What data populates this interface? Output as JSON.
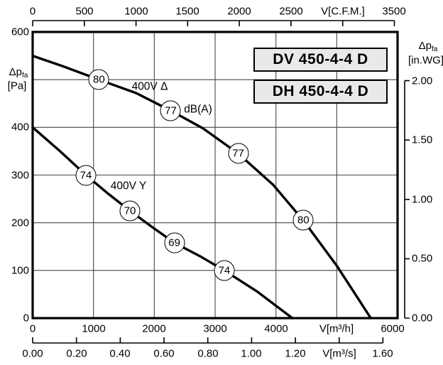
{
  "titles": {
    "box1": "DV 450-4-4 D",
    "box2": "DH 450-4-4 D"
  },
  "chart_data": {
    "type": "line",
    "grid": true,
    "axes": {
      "left": {
        "label": "Δp",
        "label_sub": "fa",
        "unit": "[Pa]",
        "range": [
          0,
          600
        ],
        "tick_labels": [
          "600",
          "400",
          "300",
          "200",
          "100",
          "0"
        ],
        "gridlines_pa": [
          500,
          400,
          300,
          200,
          100
        ]
      },
      "right": {
        "label": "Δp",
        "label_sub": "fa",
        "unit": "[in.WG]",
        "range": [
          0,
          2.0
        ],
        "tick_labels": [
          "2.00",
          "1.50",
          "1.00",
          "0.50",
          "0.00"
        ]
      },
      "top": {
        "unit": "V[C.F.M.]",
        "range": [
          0,
          3500
        ],
        "tick_labels": [
          "0",
          "500",
          "1000",
          "1500",
          "2000",
          "2500",
          "V[C.F.M.]",
          "3500"
        ]
      },
      "bottom": {
        "unit": "V[m³/h]",
        "range": [
          0,
          6000
        ],
        "tick_labels": [
          "0",
          "1000",
          "2000",
          "3000",
          "4000",
          "V[m³/h]",
          "6000"
        ],
        "gridlines_m3h": [
          1000,
          2000,
          3000,
          4000,
          5000
        ]
      },
      "bottom2": {
        "unit": "V[m³/s]",
        "range": [
          0,
          1.6
        ],
        "tick_labels": [
          "0.00",
          "0.20",
          "0.40",
          "0.60",
          "0.80",
          "1.00",
          "1.20",
          "V[m³/s]",
          "1.60"
        ]
      }
    },
    "noise_unit": "dB(A)",
    "series": [
      {
        "name": "400V Δ",
        "points_m3h_pa": [
          [
            0,
            550
          ],
          [
            500,
            528
          ],
          [
            1090,
            500
          ],
          [
            1700,
            472
          ],
          [
            2270,
            435
          ],
          [
            2800,
            398
          ],
          [
            3380,
            345
          ],
          [
            3950,
            280
          ],
          [
            4450,
            205
          ],
          [
            5000,
            110
          ],
          [
            5560,
            0
          ]
        ],
        "labeled_points": [
          {
            "m3h": 1090,
            "pa": 500,
            "label": "80"
          },
          {
            "m3h": 2270,
            "pa": 435,
            "label": "77"
          },
          {
            "m3h": 3380,
            "pa": 345,
            "label": "77"
          },
          {
            "m3h": 4450,
            "pa": 205,
            "label": "80"
          }
        ]
      },
      {
        "name": "400V Y",
        "points_m3h_pa": [
          [
            0,
            400
          ],
          [
            450,
            350
          ],
          [
            875,
            300
          ],
          [
            1250,
            260
          ],
          [
            1600,
            225
          ],
          [
            1975,
            190
          ],
          [
            2330,
            158
          ],
          [
            2750,
            130
          ],
          [
            3150,
            100
          ],
          [
            3700,
            55
          ],
          [
            4270,
            0
          ]
        ],
        "labeled_points": [
          {
            "m3h": 875,
            "pa": 300,
            "label": "74"
          },
          {
            "m3h": 1600,
            "pa": 225,
            "label": "70"
          },
          {
            "m3h": 2330,
            "pa": 158,
            "label": "69"
          },
          {
            "m3h": 3150,
            "pa": 100,
            "label": "74"
          }
        ]
      }
    ]
  }
}
